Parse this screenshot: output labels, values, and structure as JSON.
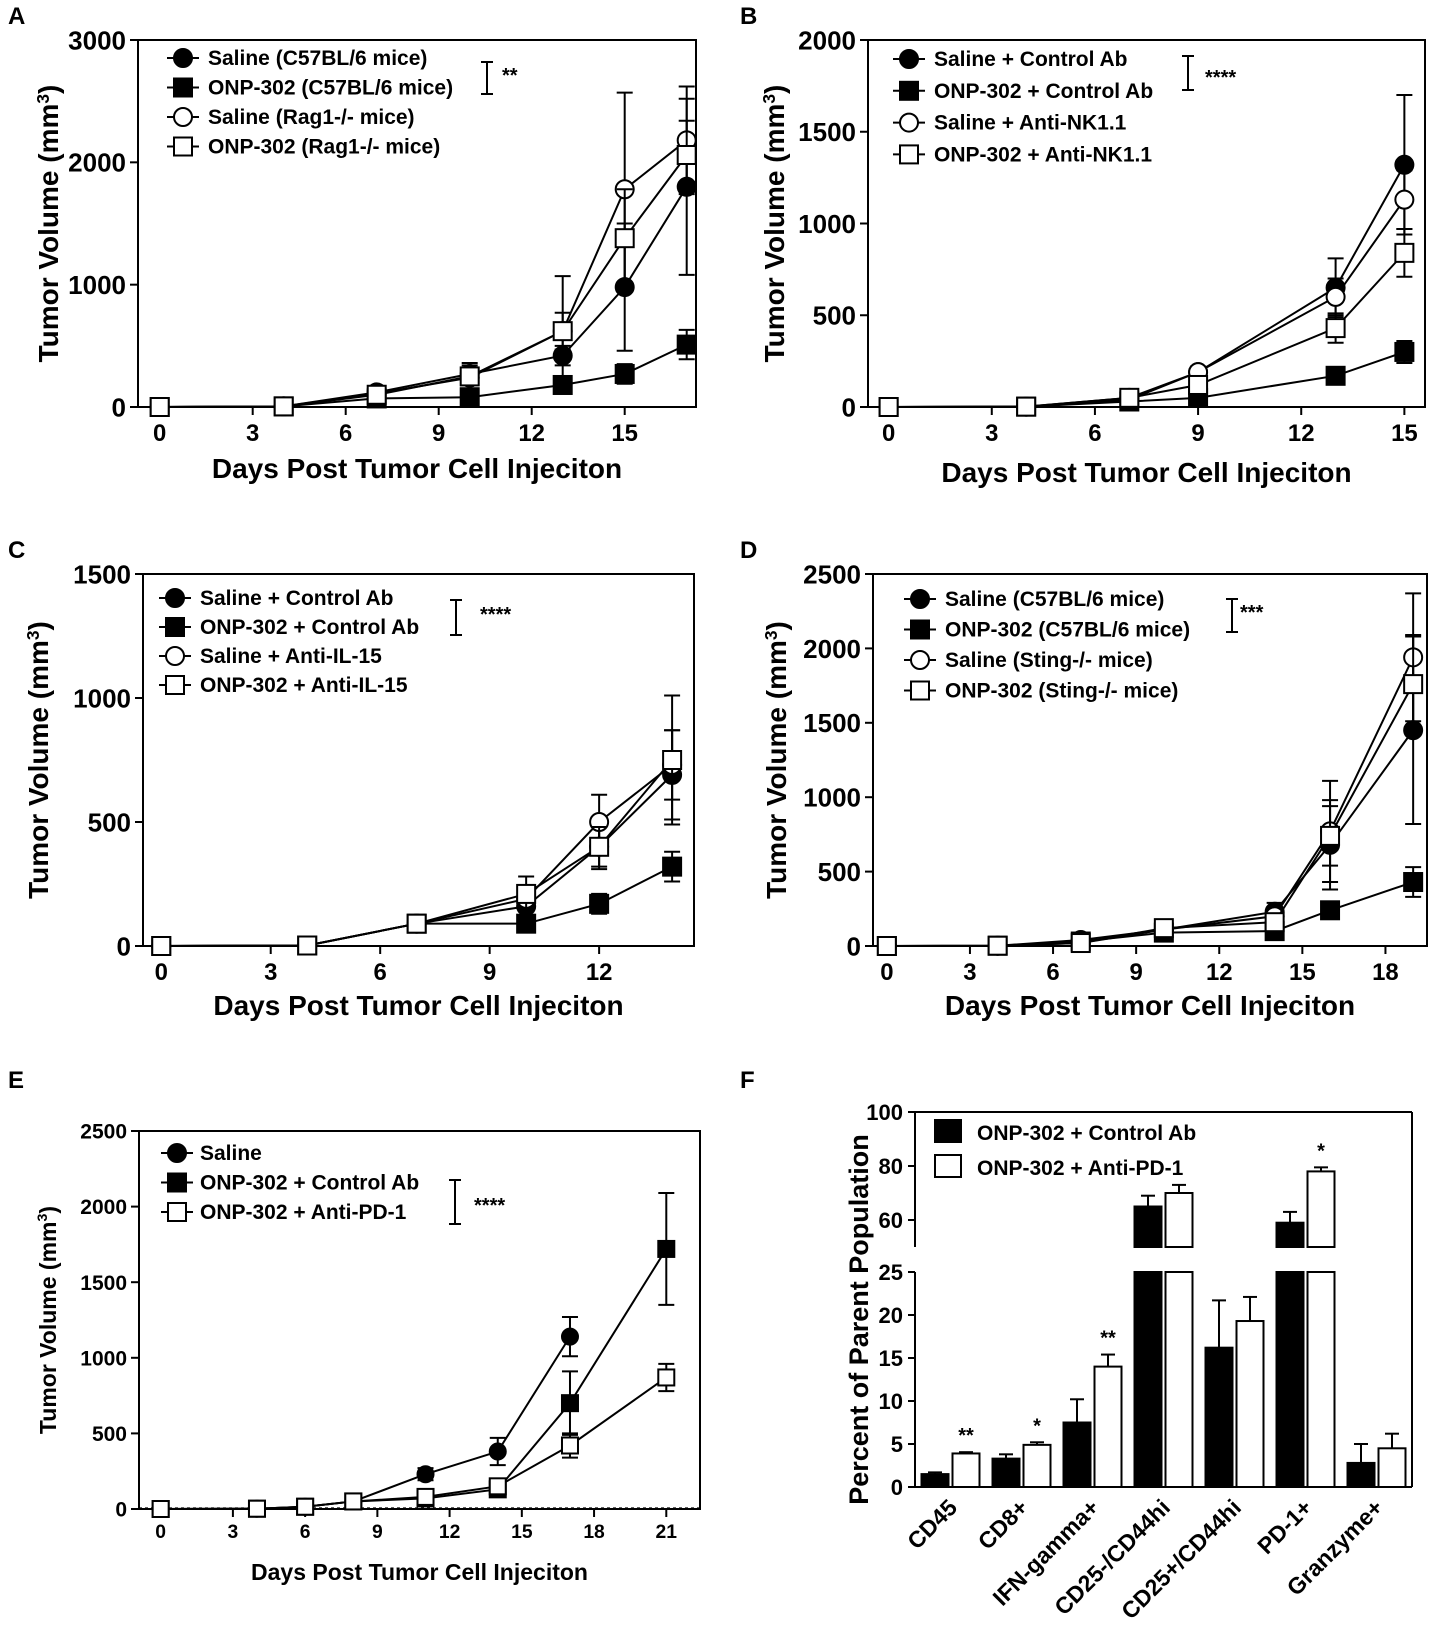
{
  "figure": {
    "colors": {
      "ink": "#000000",
      "paper": "#ffffff"
    }
  },
  "chart_data": [
    {
      "panel": "A",
      "type": "line",
      "title": "",
      "xlabel": "Days Post Tumor Cell Injeciton",
      "ylabel": "Tumor Volume (mm",
      "ylabel_sup": "3",
      "ylabel_close": ")",
      "xlim": [
        -0.7,
        17.3
      ],
      "ylim": [
        0,
        3000
      ],
      "xticks": [
        0,
        3,
        6,
        9,
        12,
        15
      ],
      "yticks": [
        0,
        1000,
        2000,
        3000
      ],
      "significance": "**",
      "sig_pair": [
        0,
        1
      ],
      "legend_position": "top-left",
      "series": [
        {
          "name": "Saline (C57BL/6 mice)",
          "marker": "circle-filled",
          "x": [
            0,
            4,
            7,
            10,
            13,
            15,
            17
          ],
          "y": [
            0,
            5,
            120,
            270,
            420,
            980,
            1800
          ],
          "err": [
            0,
            0,
            30,
            50,
            80,
            520,
            720
          ]
        },
        {
          "name": "ONP-302 (C57BL/6 mice)",
          "marker": "square-filled",
          "x": [
            0,
            4,
            7,
            10,
            13,
            15,
            17
          ],
          "y": [
            0,
            5,
            70,
            80,
            180,
            270,
            510
          ],
          "err": [
            0,
            0,
            20,
            30,
            50,
            80,
            120
          ]
        },
        {
          "name": "Saline (Rag1-/- mice)",
          "marker": "circle-open",
          "x": [
            0,
            4,
            7,
            10,
            13,
            15,
            17
          ],
          "y": [
            0,
            5,
            110,
            240,
            620,
            1780,
            2180
          ],
          "err": [
            0,
            0,
            25,
            100,
            450,
            790,
            440
          ]
        },
        {
          "name": "ONP-302 (Rag1-/- mice)",
          "marker": "square-open",
          "x": [
            0,
            4,
            7,
            10,
            13,
            15,
            17
          ],
          "y": [
            0,
            5,
            100,
            250,
            620,
            1380,
            2060
          ],
          "err": [
            0,
            0,
            25,
            110,
            150,
            400,
            280
          ]
        }
      ]
    },
    {
      "panel": "B",
      "type": "line",
      "title": "",
      "xlabel": "Days Post Tumor Cell Injeciton",
      "ylabel": "Tumor Volume (mm",
      "ylabel_sup": "3",
      "ylabel_close": ")",
      "xlim": [
        -0.6,
        15.6
      ],
      "ylim": [
        0,
        2000
      ],
      "xticks": [
        0,
        3,
        6,
        9,
        12,
        15
      ],
      "yticks": [
        0,
        500,
        1000,
        1500,
        2000
      ],
      "significance": "****",
      "sig_pair": [
        0,
        1
      ],
      "legend_position": "top-left",
      "series": [
        {
          "name": "Saline + Control Ab",
          "marker": "circle-filled",
          "x": [
            0,
            4,
            7,
            9,
            13,
            15
          ],
          "y": [
            0,
            2,
            40,
            190,
            650,
            1320
          ],
          "err": [
            0,
            0,
            10,
            30,
            160,
            380
          ]
        },
        {
          "name": "ONP-302 + Control Ab",
          "marker": "square-filled",
          "x": [
            0,
            4,
            7,
            9,
            13,
            15
          ],
          "y": [
            0,
            2,
            30,
            50,
            170,
            300
          ],
          "err": [
            0,
            0,
            10,
            15,
            40,
            60
          ]
        },
        {
          "name": "Saline + Anti-NK1.1",
          "marker": "circle-open",
          "x": [
            0,
            4,
            7,
            9,
            13,
            15
          ],
          "y": [
            0,
            2,
            50,
            190,
            600,
            1130
          ],
          "err": [
            0,
            0,
            10,
            30,
            100,
            160
          ]
        },
        {
          "name": "ONP-302 + Anti-NK1.1",
          "marker": "square-open",
          "x": [
            0,
            4,
            7,
            9,
            13,
            15
          ],
          "y": [
            0,
            2,
            50,
            120,
            430,
            840
          ],
          "err": [
            0,
            0,
            10,
            30,
            80,
            130
          ]
        }
      ]
    },
    {
      "panel": "C",
      "type": "line",
      "title": "",
      "xlabel": "Days Post Tumor Cell Injeciton",
      "ylabel": "Tumor Volume (mm",
      "ylabel_sup": "3",
      "ylabel_close": ")",
      "xlim": [
        -0.5,
        14.6
      ],
      "ylim": [
        0,
        1500
      ],
      "xticks": [
        0,
        3,
        6,
        9,
        12
      ],
      "yticks": [
        0,
        500,
        1000,
        1500
      ],
      "significance": "****",
      "sig_pair": [
        0,
        1
      ],
      "legend_position": "top-left",
      "series": [
        {
          "name": "Saline + Control Ab",
          "marker": "circle-filled",
          "x": [
            0,
            4,
            7,
            10,
            12,
            14
          ],
          "y": [
            0,
            2,
            90,
            160,
            400,
            690
          ],
          "err": [
            0,
            0,
            20,
            40,
            90,
            180
          ]
        },
        {
          "name": "ONP-302 + Control Ab",
          "marker": "square-filled",
          "x": [
            0,
            4,
            7,
            10,
            12,
            14
          ],
          "y": [
            0,
            2,
            90,
            90,
            170,
            320
          ],
          "err": [
            0,
            0,
            20,
            30,
            40,
            60
          ]
        },
        {
          "name": "Saline + Anti-IL-15",
          "marker": "circle-open",
          "x": [
            0,
            4,
            7,
            10,
            12,
            14
          ],
          "y": [
            0,
            2,
            90,
            190,
            500,
            730
          ],
          "err": [
            0,
            0,
            20,
            50,
            110,
            140
          ]
        },
        {
          "name": "ONP-302 + Anti-IL-15",
          "marker": "square-open",
          "x": [
            0,
            4,
            7,
            10,
            12,
            14
          ],
          "y": [
            0,
            2,
            90,
            210,
            400,
            750
          ],
          "err": [
            0,
            0,
            20,
            70,
            80,
            260
          ]
        }
      ]
    },
    {
      "panel": "D",
      "type": "line",
      "title": "",
      "xlabel": "Days Post Tumor Cell Injeciton",
      "ylabel": "Tumor Volume (mm",
      "ylabel_sup": "3",
      "ylabel_close": ")",
      "xlim": [
        -0.5,
        19.5
      ],
      "ylim": [
        0,
        2500
      ],
      "xticks": [
        0,
        3,
        6,
        9,
        12,
        15,
        18
      ],
      "yticks": [
        0,
        500,
        1000,
        1500,
        2000,
        2500
      ],
      "significance": "***",
      "sig_pair": [
        0,
        1
      ],
      "legend_position": "top-left",
      "series": [
        {
          "name": "Saline (C57BL/6 mice)",
          "marker": "circle-filled",
          "x": [
            0,
            4,
            7,
            10,
            14,
            16,
            19
          ],
          "y": [
            0,
            2,
            40,
            110,
            230,
            680,
            1450
          ],
          "err": [
            0,
            0,
            20,
            30,
            60,
            300,
            630
          ]
        },
        {
          "name": "ONP-302 (C57BL/6 mice)",
          "marker": "square-filled",
          "x": [
            0,
            4,
            7,
            10,
            14,
            16,
            19
          ],
          "y": [
            0,
            2,
            30,
            90,
            100,
            240,
            430
          ],
          "err": [
            0,
            0,
            15,
            20,
            25,
            40,
            100
          ]
        },
        {
          "name": "Saline (Sting-/- mice)",
          "marker": "circle-open",
          "x": [
            0,
            4,
            7,
            10,
            14,
            16,
            19
          ],
          "y": [
            0,
            2,
            20,
            110,
            200,
            770,
            1940
          ],
          "err": [
            0,
            0,
            10,
            30,
            60,
            340,
            430
          ]
        },
        {
          "name": "ONP-302 (Sting-/- mice)",
          "marker": "square-open",
          "x": [
            0,
            4,
            7,
            10,
            14,
            16,
            19
          ],
          "y": [
            0,
            2,
            20,
            120,
            160,
            740,
            1760
          ],
          "err": [
            0,
            0,
            10,
            30,
            50,
            200,
            330
          ]
        }
      ]
    },
    {
      "panel": "E",
      "type": "line",
      "title": "",
      "xlabel": "Days Post Tumor Cell Injeciton",
      "ylabel": "Tumor Volume (mm",
      "ylabel_sup": "3",
      "ylabel_close": ")",
      "xlim": [
        -0.9,
        22.4
      ],
      "ylim": [
        0,
        2500
      ],
      "xticks": [
        0,
        3,
        6,
        9,
        12,
        15,
        18,
        21
      ],
      "yticks": [
        0,
        500,
        1000,
        1500,
        2000,
        2500
      ],
      "significance": "****",
      "sig_pair": [
        1,
        2
      ],
      "legend_position": "top-left",
      "series": [
        {
          "name": "Saline",
          "marker": "circle-filled",
          "x": [
            0,
            4,
            6,
            8,
            11,
            14,
            17
          ],
          "y": [
            0,
            2,
            15,
            50,
            230,
            380,
            1140
          ],
          "err": [
            0,
            0,
            5,
            10,
            40,
            90,
            130
          ]
        },
        {
          "name": "ONP-302 + Control Ab",
          "marker": "square-filled",
          "x": [
            0,
            4,
            6,
            8,
            11,
            14,
            17,
            21
          ],
          "y": [
            0,
            2,
            15,
            50,
            70,
            130,
            700,
            1720
          ],
          "err": [
            0,
            0,
            5,
            10,
            20,
            30,
            210,
            370
          ]
        },
        {
          "name": "ONP-302 + Anti-PD-1",
          "marker": "square-open",
          "x": [
            0,
            4,
            6,
            8,
            11,
            14,
            17,
            21
          ],
          "y": [
            0,
            2,
            15,
            50,
            80,
            150,
            420,
            870
          ],
          "err": [
            0,
            0,
            5,
            10,
            20,
            40,
            80,
            90
          ]
        }
      ]
    },
    {
      "panel": "F",
      "type": "bar",
      "title": "",
      "xlabel": "",
      "ylabel": "Percent of Parent Population",
      "ylim_lower": [
        0,
        25
      ],
      "ylim_upper": [
        50,
        100
      ],
      "axis_break": true,
      "yticks_lower": [
        0,
        5,
        10,
        15,
        20,
        25
      ],
      "yticks_upper": [
        60,
        80,
        100
      ],
      "legend_position": "top-left",
      "categories": [
        "CD45",
        "CD8+",
        "IFN-gamma+",
        "CD25-/CD44hi",
        "CD25+/CD44hi",
        "PD-1+",
        "Granzyme+"
      ],
      "significance": [
        "**",
        "*",
        "**",
        "",
        "",
        "*",
        ""
      ],
      "series": [
        {
          "name": "ONP-302 + Control Ab",
          "fill": "#000000",
          "values": [
            1.5,
            3.3,
            7.5,
            65,
            16.2,
            59,
            2.8
          ],
          "err": [
            0.2,
            0.5,
            2.7,
            4,
            5.5,
            4,
            2.2
          ]
        },
        {
          "name": "ONP-302 + Anti-PD-1",
          "fill": "#ffffff",
          "values": [
            3.9,
            4.9,
            14.0,
            70,
            19.3,
            78,
            4.5
          ],
          "err": [
            0.15,
            0.3,
            1.4,
            3,
            2.8,
            1.5,
            1.7
          ]
        }
      ]
    }
  ]
}
